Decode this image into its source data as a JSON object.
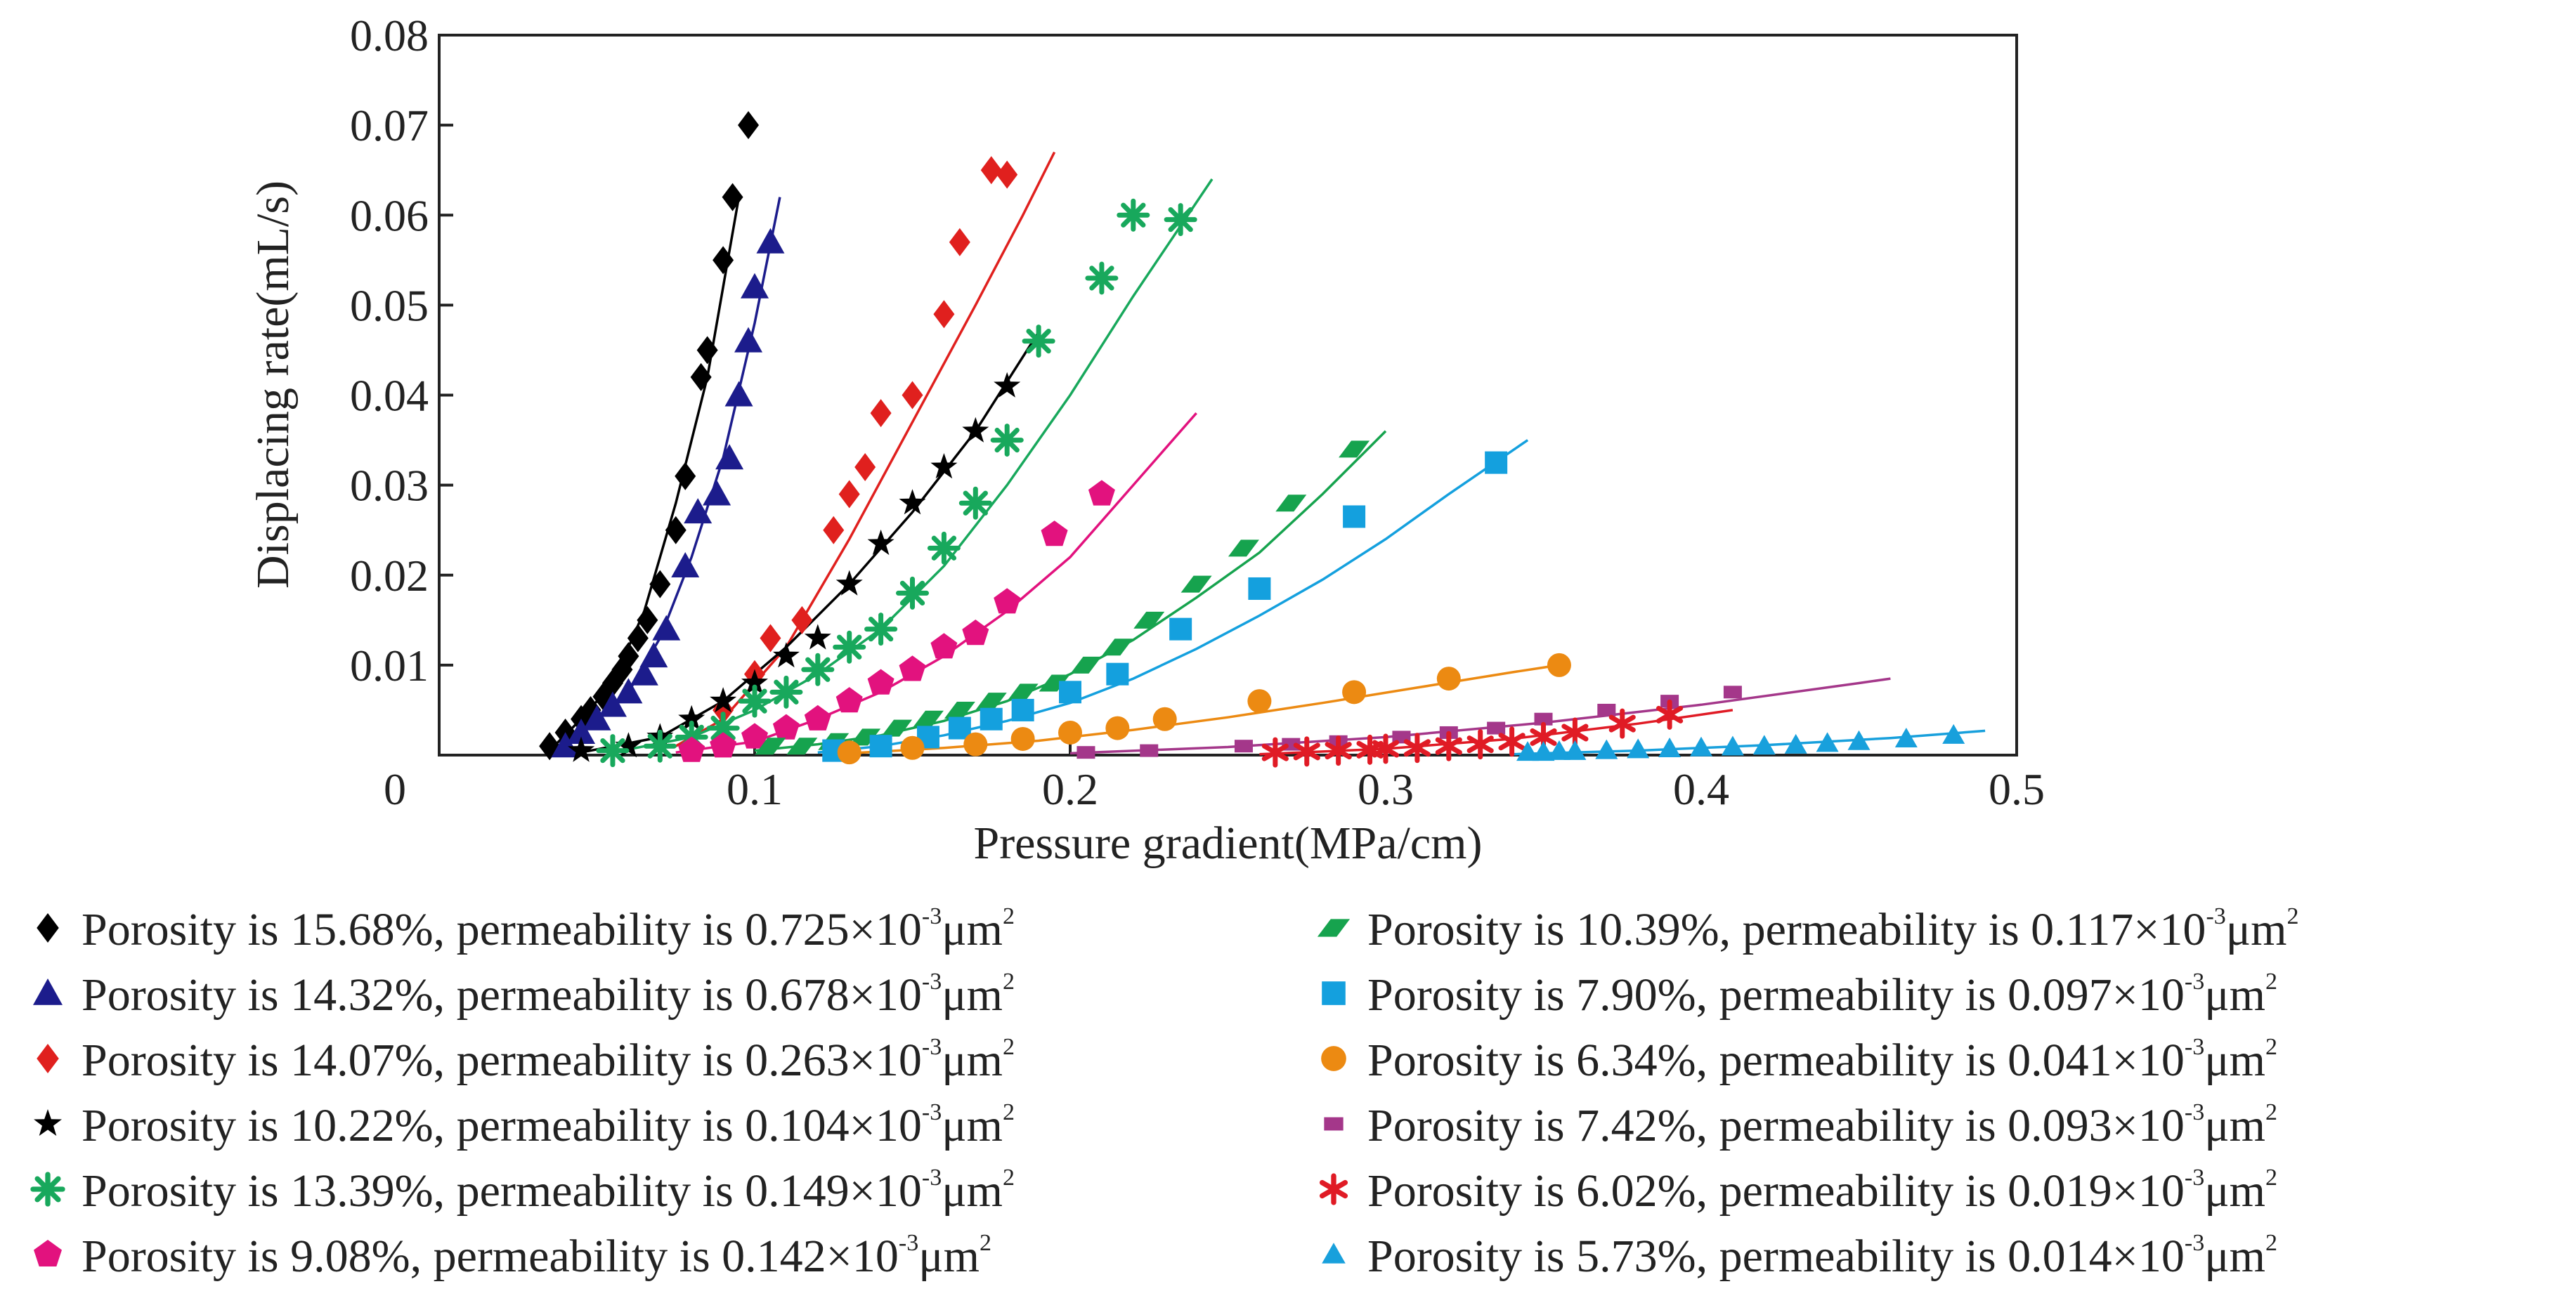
{
  "chart_data": {
    "type": "scatter",
    "title": "",
    "xlabel": "Pressure gradient(MPa/cm)",
    "ylabel": "Displacing rate(mL/s)",
    "xlim": [
      0,
      0.5
    ],
    "ylim": [
      0,
      0.08
    ],
    "x_ticks": [
      "0",
      "0.1",
      "0.2",
      "0.3",
      "0.4",
      "0.5"
    ],
    "y_ticks": [
      "0.01",
      "0.02",
      "0.03",
      "0.04",
      "0.05",
      "0.06",
      "0.07",
      "0.08"
    ],
    "grid": false,
    "legend_position": "bottom",
    "series": [
      {
        "name": "Porosity is 15.68%, permeability is 0.725×10-3μm2",
        "porosity": "15.68%",
        "permeability": "0.725",
        "marker": "diamond",
        "color": "#000000",
        "x": [
          0.035,
          0.04,
          0.045,
          0.048,
          0.052,
          0.055,
          0.058,
          0.06,
          0.063,
          0.066,
          0.07,
          0.075,
          0.078,
          0.083,
          0.085,
          0.09,
          0.093,
          0.098
        ],
        "y": [
          0.001,
          0.0025,
          0.004,
          0.005,
          0.0065,
          0.008,
          0.0095,
          0.011,
          0.013,
          0.015,
          0.019,
          0.025,
          0.031,
          0.042,
          0.045,
          0.055,
          0.062,
          0.07
        ],
        "fit_x": [
          0.035,
          0.045,
          0.055,
          0.065,
          0.075,
          0.085,
          0.095
        ],
        "fit_y": [
          0.0005,
          0.004,
          0.008,
          0.016,
          0.028,
          0.042,
          0.062
        ]
      },
      {
        "name": "Porosity is 14.32%, permeability is 0.678×10-3μm2",
        "porosity": "14.32%",
        "permeability": "0.678",
        "marker": "triangle",
        "color": "#1c1c8c",
        "x": [
          0.04,
          0.045,
          0.05,
          0.055,
          0.06,
          0.065,
          0.068,
          0.072,
          0.078,
          0.082,
          0.088,
          0.092,
          0.095,
          0.098,
          0.1,
          0.105
        ],
        "y": [
          0.001,
          0.0025,
          0.004,
          0.0055,
          0.007,
          0.009,
          0.011,
          0.014,
          0.021,
          0.027,
          0.029,
          0.033,
          0.04,
          0.046,
          0.052,
          0.057
        ],
        "fit_x": [
          0.038,
          0.05,
          0.06,
          0.07,
          0.08,
          0.09,
          0.1,
          0.108
        ],
        "fit_y": [
          0.0005,
          0.004,
          0.007,
          0.013,
          0.022,
          0.033,
          0.048,
          0.062
        ]
      },
      {
        "name": "Porosity is 14.07%, permeability is 0.263×10-3μm2",
        "porosity": "14.07%",
        "permeability": "0.263",
        "marker": "diamond",
        "color": "#e0201e",
        "x": [
          0.09,
          0.1,
          0.105,
          0.115,
          0.125,
          0.13,
          0.135,
          0.14,
          0.15,
          0.16,
          0.165,
          0.175,
          0.18
        ],
        "y": [
          0.005,
          0.009,
          0.013,
          0.015,
          0.025,
          0.029,
          0.032,
          0.038,
          0.04,
          0.049,
          0.057,
          0.065,
          0.0645
        ],
        "fit_x": [
          0.075,
          0.09,
          0.11,
          0.13,
          0.15,
          0.17,
          0.185,
          0.195
        ],
        "fit_y": [
          0.001,
          0.004,
          0.012,
          0.024,
          0.037,
          0.05,
          0.06,
          0.067
        ]
      },
      {
        "name": "Porosity is 10.22%, permeability is 0.104×10-3μm2",
        "porosity": "10.22%",
        "permeability": "0.104",
        "marker": "star",
        "color": "#000000",
        "x": [
          0.045,
          0.06,
          0.07,
          0.08,
          0.09,
          0.1,
          0.11,
          0.12,
          0.13,
          0.14,
          0.15,
          0.16,
          0.17,
          0.18
        ],
        "y": [
          0.0005,
          0.001,
          0.002,
          0.004,
          0.006,
          0.008,
          0.011,
          0.013,
          0.019,
          0.0235,
          0.028,
          0.032,
          0.036,
          0.041
        ],
        "fit_x": [
          0.045,
          0.07,
          0.09,
          0.11,
          0.13,
          0.15,
          0.17,
          0.19
        ],
        "fit_y": [
          0.0003,
          0.002,
          0.006,
          0.012,
          0.019,
          0.027,
          0.036,
          0.047
        ]
      },
      {
        "name": "Porosity is 13.39%, permeability is 0.149×10-3μm2",
        "porosity": "13.39%",
        "permeability": "0.149",
        "marker": "asterisk",
        "color": "#18a85c",
        "x": [
          0.055,
          0.07,
          0.08,
          0.09,
          0.1,
          0.11,
          0.12,
          0.13,
          0.14,
          0.15,
          0.16,
          0.17,
          0.18,
          0.19,
          0.21,
          0.22,
          0.235
        ],
        "y": [
          0.0005,
          0.001,
          0.002,
          0.003,
          0.006,
          0.007,
          0.0095,
          0.012,
          0.014,
          0.018,
          0.023,
          0.028,
          0.035,
          0.046,
          0.053,
          0.06,
          0.0595
        ],
        "fit_x": [
          0.055,
          0.08,
          0.1,
          0.12,
          0.14,
          0.16,
          0.18,
          0.2,
          0.22,
          0.245
        ],
        "fit_y": [
          0.0003,
          0.002,
          0.005,
          0.009,
          0.014,
          0.021,
          0.03,
          0.04,
          0.051,
          0.064
        ]
      },
      {
        "name": "Porosity is 9.08%, permeability is 0.142×10-3μm2",
        "porosity": "9.08%",
        "permeability": "0.142",
        "marker": "pentagon",
        "color": "#e2127e",
        "x": [
          0.08,
          0.09,
          0.1,
          0.11,
          0.12,
          0.13,
          0.14,
          0.15,
          0.16,
          0.17,
          0.18,
          0.195,
          0.21
        ],
        "y": [
          0.0005,
          0.001,
          0.002,
          0.003,
          0.004,
          0.006,
          0.008,
          0.0095,
          0.012,
          0.0135,
          0.017,
          0.0245,
          0.029
        ],
        "fit_x": [
          0.075,
          0.1,
          0.12,
          0.14,
          0.16,
          0.18,
          0.2,
          0.22,
          0.24
        ],
        "fit_y": [
          0.0003,
          0.0015,
          0.004,
          0.007,
          0.011,
          0.016,
          0.022,
          0.03,
          0.038
        ]
      },
      {
        "name": "Porosity is 10.39%, permeability is 0.117×10-3μm2",
        "porosity": "10.39%",
        "permeability": "0.117",
        "marker": "parallelogram",
        "color": "#16a34e",
        "x": [
          0.105,
          0.115,
          0.125,
          0.135,
          0.145,
          0.155,
          0.165,
          0.175,
          0.185,
          0.195,
          0.205,
          0.215,
          0.225,
          0.24,
          0.255,
          0.27,
          0.29
        ],
        "y": [
          0.001,
          0.001,
          0.0015,
          0.002,
          0.003,
          0.004,
          0.005,
          0.006,
          0.007,
          0.008,
          0.01,
          0.012,
          0.015,
          0.019,
          0.023,
          0.028,
          0.034
        ],
        "fit_x": [
          0.1,
          0.12,
          0.14,
          0.16,
          0.18,
          0.2,
          0.22,
          0.24,
          0.26,
          0.28,
          0.3
        ],
        "fit_y": [
          0.0005,
          0.0012,
          0.0022,
          0.0038,
          0.006,
          0.009,
          0.0128,
          0.0175,
          0.0225,
          0.029,
          0.036
        ]
      },
      {
        "name": "Porosity is 7.90%, permeability is 0.097×10-3μm2",
        "porosity": "7.90%",
        "permeability": "0.097",
        "marker": "square",
        "color": "#14a0de",
        "x": [
          0.125,
          0.14,
          0.155,
          0.165,
          0.175,
          0.185,
          0.2,
          0.215,
          0.235,
          0.26,
          0.29,
          0.335
        ],
        "y": [
          0.0005,
          0.001,
          0.002,
          0.003,
          0.004,
          0.005,
          0.007,
          0.009,
          0.014,
          0.0185,
          0.0265,
          0.0325
        ],
        "fit_x": [
          0.12,
          0.14,
          0.16,
          0.18,
          0.2,
          0.22,
          0.24,
          0.26,
          0.28,
          0.3,
          0.32,
          0.345
        ],
        "fit_y": [
          0.0003,
          0.001,
          0.0022,
          0.0038,
          0.0058,
          0.0085,
          0.0118,
          0.0155,
          0.0195,
          0.024,
          0.029,
          0.035
        ]
      },
      {
        "name": "Porosity is 6.34%, permeability is 0.041×10-3μm2",
        "porosity": "6.34%",
        "permeability": "0.041",
        "marker": "circle",
        "color": "#ec8a12",
        "x": [
          0.13,
          0.15,
          0.17,
          0.185,
          0.2,
          0.215,
          0.23,
          0.26,
          0.29,
          0.32,
          0.355
        ],
        "y": [
          0.0003,
          0.0008,
          0.0012,
          0.0018,
          0.0025,
          0.003,
          0.004,
          0.006,
          0.007,
          0.0085,
          0.01
        ],
        "fit_x": [
          0.13,
          0.16,
          0.19,
          0.22,
          0.25,
          0.28,
          0.31,
          0.34,
          0.355
        ],
        "fit_y": [
          0.0002,
          0.0008,
          0.0016,
          0.0028,
          0.0042,
          0.0058,
          0.0075,
          0.0092,
          0.01
        ]
      },
      {
        "name": "Porosity is 7.42%, permeability is 0.093×10-3μm2",
        "porosity": "7.42%",
        "permeability": "0.093",
        "marker": "smallsquare",
        "color": "#a4378a",
        "x": [
          0.205,
          0.225,
          0.255,
          0.27,
          0.285,
          0.305,
          0.32,
          0.335,
          0.35,
          0.37,
          0.39,
          0.41
        ],
        "y": [
          0.0003,
          0.0005,
          0.001,
          0.0012,
          0.0015,
          0.002,
          0.0025,
          0.003,
          0.004,
          0.005,
          0.006,
          0.007
        ],
        "fit_x": [
          0.2,
          0.25,
          0.3,
          0.35,
          0.4,
          0.45,
          0.46
        ],
        "fit_y": [
          0.0002,
          0.0009,
          0.002,
          0.0036,
          0.0056,
          0.008,
          0.0085
        ]
      },
      {
        "name": "Porosity is 6.02%, permeability is 0.019×10-3μm2",
        "porosity": "6.02%",
        "permeability": "0.019",
        "marker": "xstar",
        "color": "#e01b25",
        "x": [
          0.265,
          0.275,
          0.285,
          0.295,
          0.3,
          0.31,
          0.32,
          0.33,
          0.34,
          0.35,
          0.36,
          0.375,
          0.39
        ],
        "y": [
          0.0003,
          0.0004,
          0.0005,
          0.0006,
          0.0007,
          0.0008,
          0.001,
          0.0012,
          0.0015,
          0.002,
          0.0025,
          0.0035,
          0.0045
        ],
        "fit_x": [
          0.26,
          0.3,
          0.34,
          0.38,
          0.41
        ],
        "fit_y": [
          0.0001,
          0.0007,
          0.0018,
          0.0035,
          0.005
        ]
      },
      {
        "name": "Porosity is 5.73%, permeability is 0.014×10-3μm2",
        "porosity": "5.73%",
        "permeability": "0.014",
        "marker": "smalltriangle",
        "color": "#18a0dc",
        "x": [
          0.345,
          0.35,
          0.355,
          0.36,
          0.37,
          0.38,
          0.39,
          0.4,
          0.41,
          0.42,
          0.43,
          0.44,
          0.45,
          0.465,
          0.48
        ],
        "y": [
          0.0003,
          0.0003,
          0.0004,
          0.0004,
          0.0005,
          0.0006,
          0.0007,
          0.0008,
          0.0009,
          0.001,
          0.0011,
          0.0013,
          0.0015,
          0.0018,
          0.0022
        ],
        "fit_x": [
          0.34,
          0.38,
          0.42,
          0.46,
          0.49
        ],
        "fit_y": [
          0.0001,
          0.0005,
          0.0011,
          0.0019,
          0.0027
        ]
      }
    ]
  },
  "legend_tokens": {
    "porosity_prefix": "Porosity is",
    "permeability_prefix": ", permeability is",
    "times": "×10",
    "exponent": "-3",
    "unit": "μm",
    "unit_exponent": "2"
  }
}
